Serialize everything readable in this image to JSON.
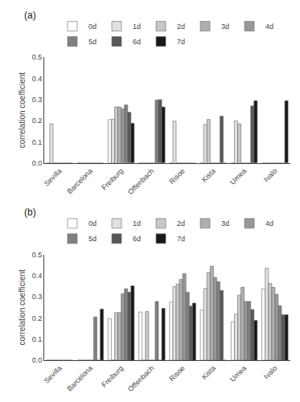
{
  "chart_data": [
    {
      "type": "bar",
      "title": "(a)",
      "ylabel": "correlation coefficient",
      "categories": [
        "Sevilla",
        "Barcelona",
        "Freiburg",
        "Offenbach",
        "Risoe",
        "Kista",
        "Umea",
        "Ivalo"
      ],
      "series": [
        {
          "name": "0d",
          "color": "#ffffff",
          "values": [
            0.0,
            0.0,
            0.205,
            0.0,
            0.0,
            0.0,
            0.0,
            0.0
          ]
        },
        {
          "name": "1d",
          "color": "#e0e0e0",
          "values": [
            0.185,
            0.0,
            0.207,
            0.0,
            0.198,
            0.182,
            0.2,
            0.0
          ]
        },
        {
          "name": "2d",
          "color": "#c8c8c8",
          "values": [
            0.0,
            0.0,
            0.265,
            0.0,
            0.0,
            0.206,
            0.185,
            0.0
          ]
        },
        {
          "name": "3d",
          "color": "#b0b0b0",
          "values": [
            0.0,
            0.0,
            0.265,
            0.0,
            0.0,
            0.0,
            0.0,
            0.0
          ]
        },
        {
          "name": "4d",
          "color": "#989898",
          "values": [
            0.0,
            0.0,
            0.257,
            0.0,
            0.0,
            0.0,
            0.0,
            0.0
          ]
        },
        {
          "name": "5d",
          "color": "#808080",
          "values": [
            0.0,
            0.0,
            0.275,
            0.298,
            0.0,
            0.0,
            0.0,
            0.0
          ]
        },
        {
          "name": "6d",
          "color": "#585858",
          "values": [
            0.0,
            0.0,
            0.24,
            0.3,
            0.0,
            0.222,
            0.27,
            0.0
          ]
        },
        {
          "name": "7d",
          "color": "#181818",
          "values": [
            0.0,
            0.0,
            0.188,
            0.265,
            0.0,
            0.0,
            0.295,
            0.295
          ]
        }
      ],
      "ylim": [
        0,
        0.5
      ],
      "yticks": [
        {
          "value": 0,
          "label": "0.0"
        },
        0.1,
        0.2,
        0.3,
        0.4,
        0.5
      ],
      "grid": false,
      "legend": "top"
    },
    {
      "type": "bar",
      "title": "(b)",
      "ylabel": "correlation coefficient",
      "categories": [
        "Sevilla",
        "Barcelona",
        "Freiburg",
        "Offenbach",
        "Risoe",
        "Kista",
        "Umea",
        "Ivalo"
      ],
      "series": [
        {
          "name": "0d",
          "color": "#ffffff",
          "values": [
            0.0,
            0.0,
            0.197,
            0.228,
            0.275,
            0.237,
            0.182,
            0.338
          ]
        },
        {
          "name": "1d",
          "color": "#e0e0e0",
          "values": [
            0.0,
            0.0,
            0.0,
            0.0,
            0.348,
            0.34,
            0.218,
            0.435
          ]
        },
        {
          "name": "2d",
          "color": "#c8c8c8",
          "values": [
            0.0,
            0.0,
            0.225,
            0.23,
            0.36,
            0.415,
            0.308,
            0.363
          ]
        },
        {
          "name": "3d",
          "color": "#b0b0b0",
          "values": [
            0.0,
            0.0,
            0.225,
            0.0,
            0.382,
            0.445,
            0.345,
            0.345
          ]
        },
        {
          "name": "4d",
          "color": "#989898",
          "values": [
            0.0,
            0.0,
            0.315,
            0.0,
            0.41,
            0.392,
            0.278,
            0.312
          ]
        },
        {
          "name": "5d",
          "color": "#808080",
          "values": [
            0.0,
            0.205,
            0.338,
            0.278,
            0.322,
            0.372,
            0.278,
            0.258
          ]
        },
        {
          "name": "6d",
          "color": "#585858",
          "values": [
            0.0,
            0.0,
            0.322,
            0.0,
            0.256,
            0.33,
            0.24,
            0.215
          ]
        },
        {
          "name": "7d",
          "color": "#181818",
          "values": [
            0.0,
            0.242,
            0.352,
            0.245,
            0.27,
            0.0,
            0.188,
            0.215
          ]
        }
      ],
      "ylim": [
        0,
        0.5
      ],
      "yticks": [
        {
          "value": 0,
          "label": "0.0"
        },
        0.1,
        0.2,
        0.3,
        0.4,
        0.5
      ],
      "grid": false,
      "legend": "top"
    }
  ]
}
